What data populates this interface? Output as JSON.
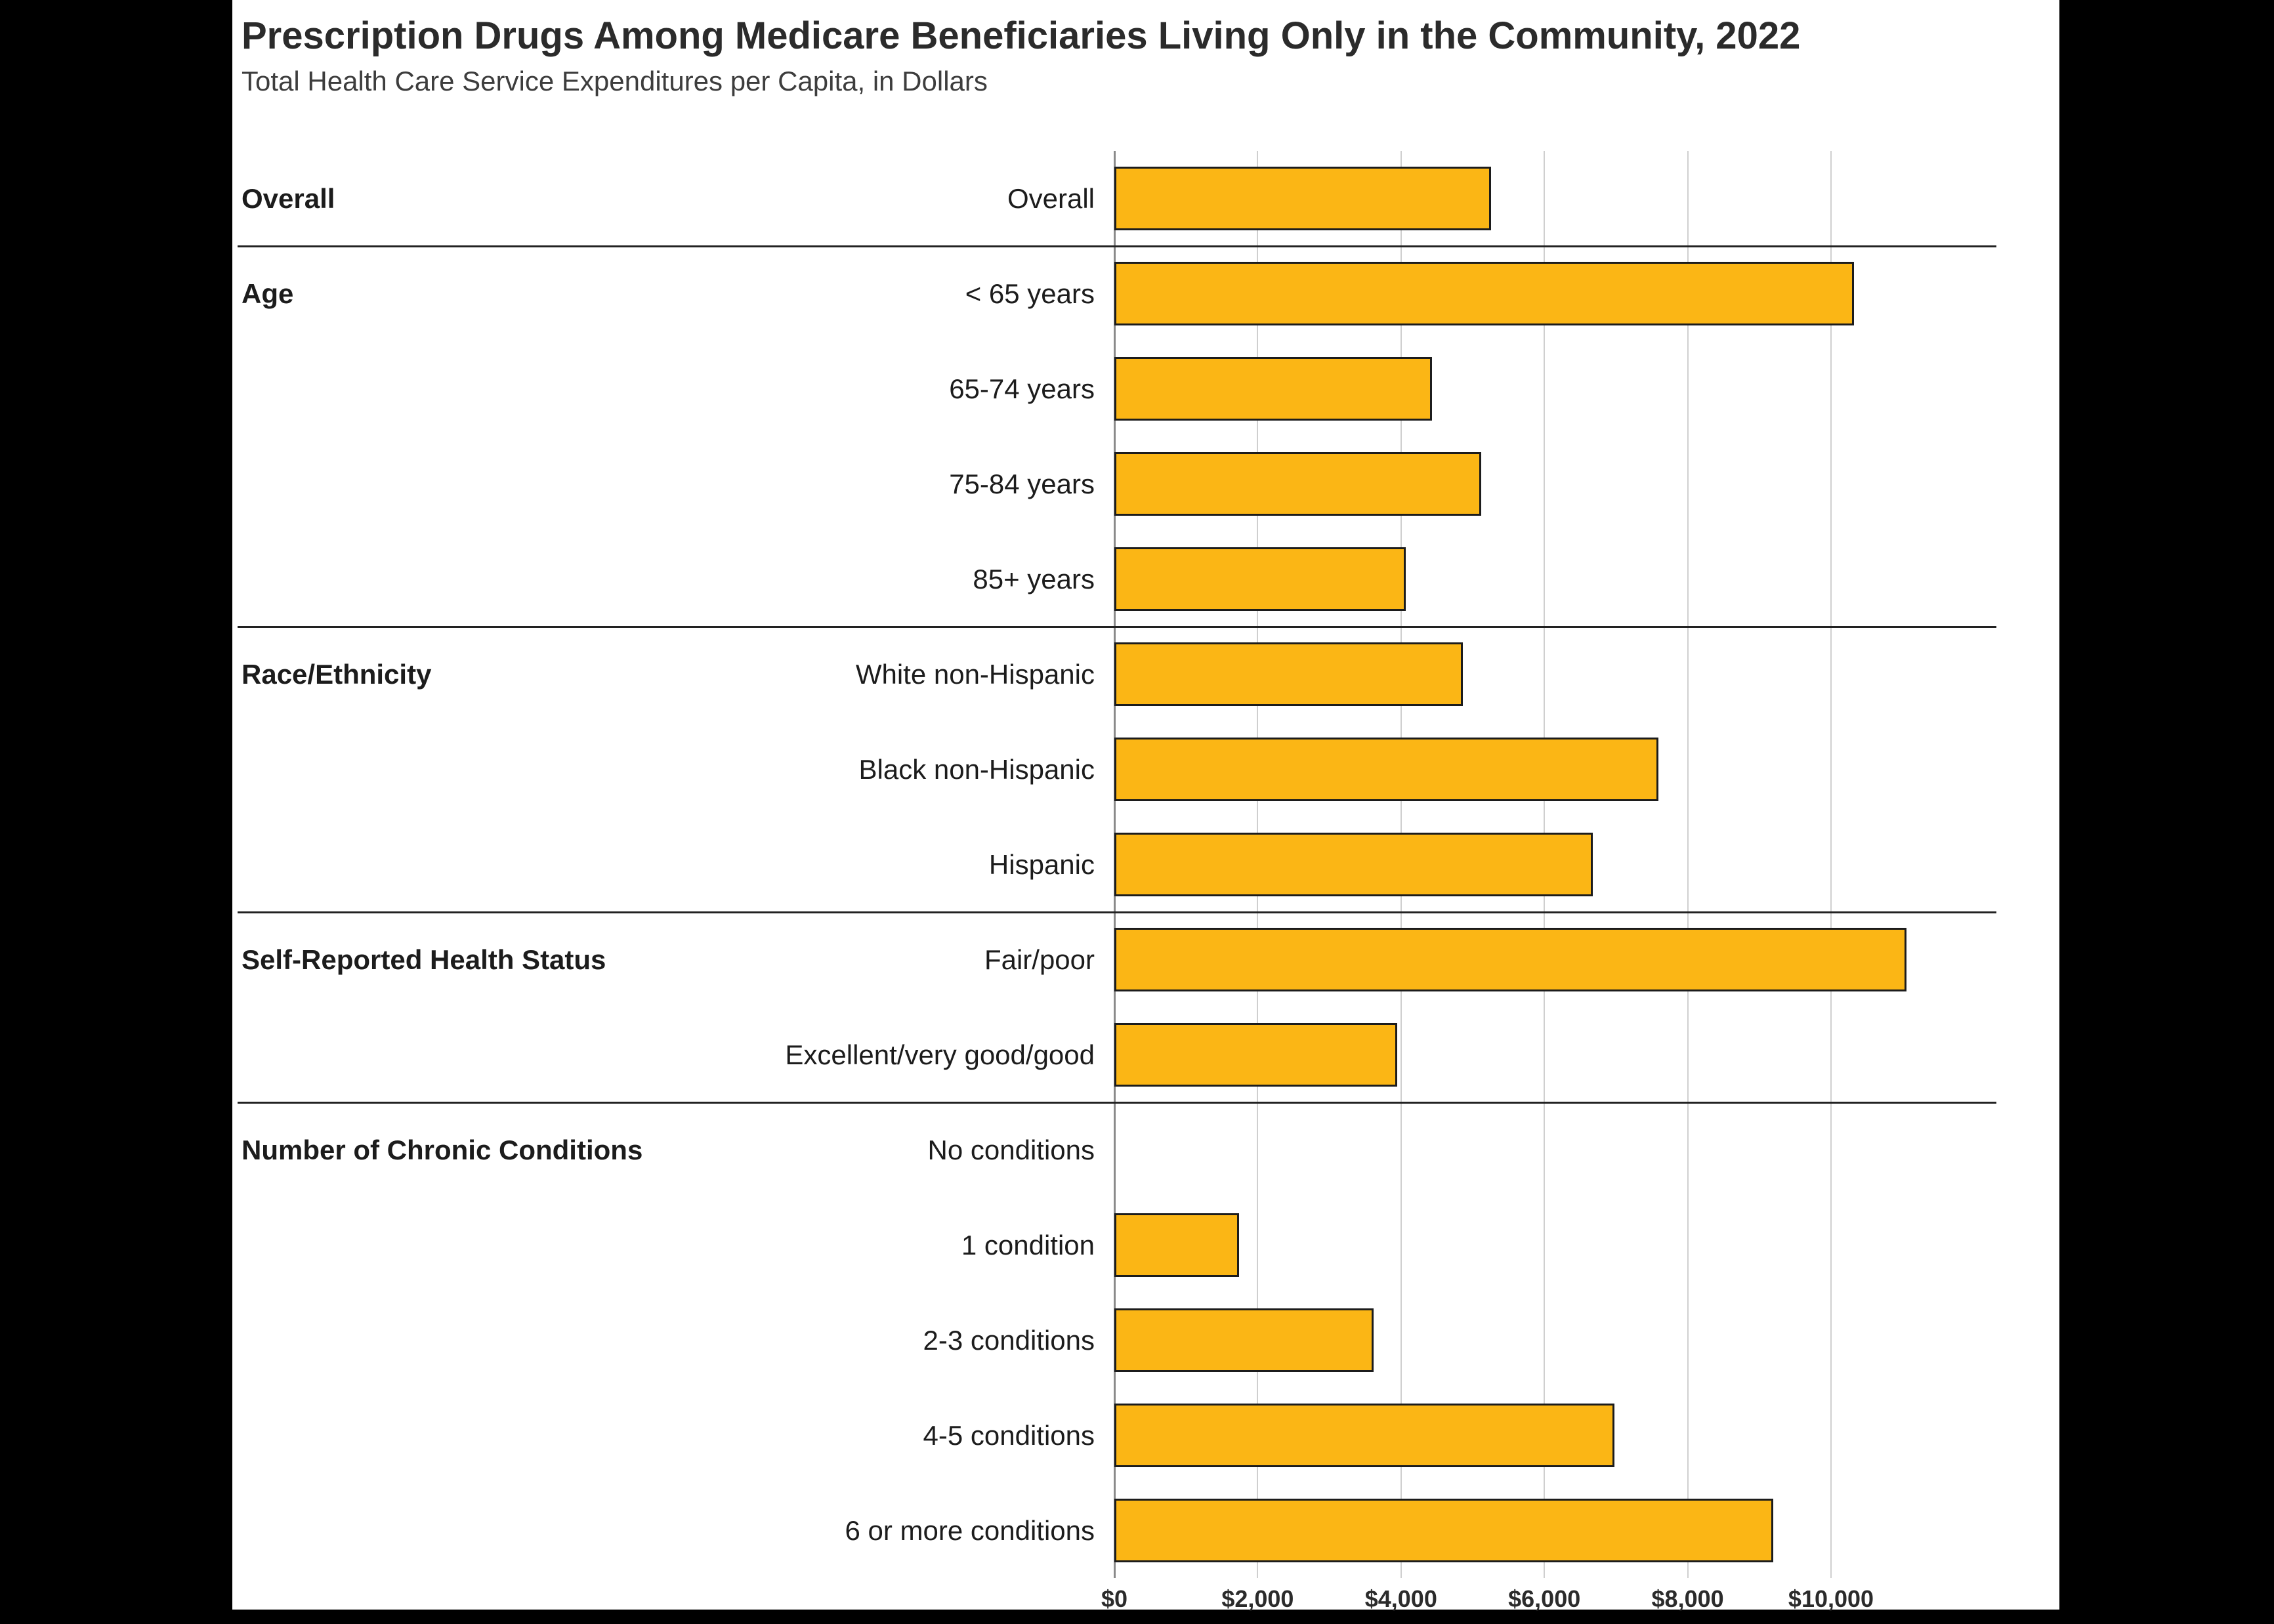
{
  "page": {
    "background_color": "#000000",
    "panel_color": "#ffffff"
  },
  "chart_data": {
    "type": "bar",
    "orientation": "horizontal",
    "title": "Prescription Drugs Among Medicare Beneficiaries Living Only in the Community, 2022",
    "subtitle": "Total Health Care Service Expenditures per Capita, in Dollars",
    "xlabel": "",
    "ylabel": "",
    "xlim": [
      0,
      11500
    ],
    "grid": true,
    "legend": "none",
    "bar_color": "#FBB615",
    "bar_border_color": "#1c1c1c",
    "x_ticks": [
      {
        "value": 0,
        "label": "$0"
      },
      {
        "value": 2000,
        "label": "$2,000"
      },
      {
        "value": 4000,
        "label": "$4,000"
      },
      {
        "value": 6000,
        "label": "$6,000"
      },
      {
        "value": 8000,
        "label": "$8,000"
      },
      {
        "value": 10000,
        "label": "$10,000"
      }
    ],
    "groups": [
      {
        "label": "Overall",
        "rows": [
          {
            "label": "Overall",
            "value": 5260
          }
        ]
      },
      {
        "label": "Age",
        "rows": [
          {
            "label": "< 65 years",
            "value": 10320
          },
          {
            "label": "65-74 years",
            "value": 4430
          },
          {
            "label": "75-84 years",
            "value": 5120
          },
          {
            "label": "85+ years",
            "value": 4070
          }
        ]
      },
      {
        "label": "Race/Ethnicity",
        "rows": [
          {
            "label": "White non-Hispanic",
            "value": 4860
          },
          {
            "label": "Black non-Hispanic",
            "value": 7590
          },
          {
            "label": "Hispanic",
            "value": 6680
          }
        ]
      },
      {
        "label": "Self-Reported Health Status",
        "rows": [
          {
            "label": "Fair/poor",
            "value": 11050
          },
          {
            "label": "Excellent/very good/good",
            "value": 3950
          }
        ]
      },
      {
        "label": "Number of Chronic Conditions",
        "rows": [
          {
            "label": "No conditions",
            "value": 0
          },
          {
            "label": "1 condition",
            "value": 1740
          },
          {
            "label": "2-3 conditions",
            "value": 3620
          },
          {
            "label": "4-5 conditions",
            "value": 6980
          },
          {
            "label": "6 or more conditions",
            "value": 9190
          }
        ]
      }
    ]
  }
}
